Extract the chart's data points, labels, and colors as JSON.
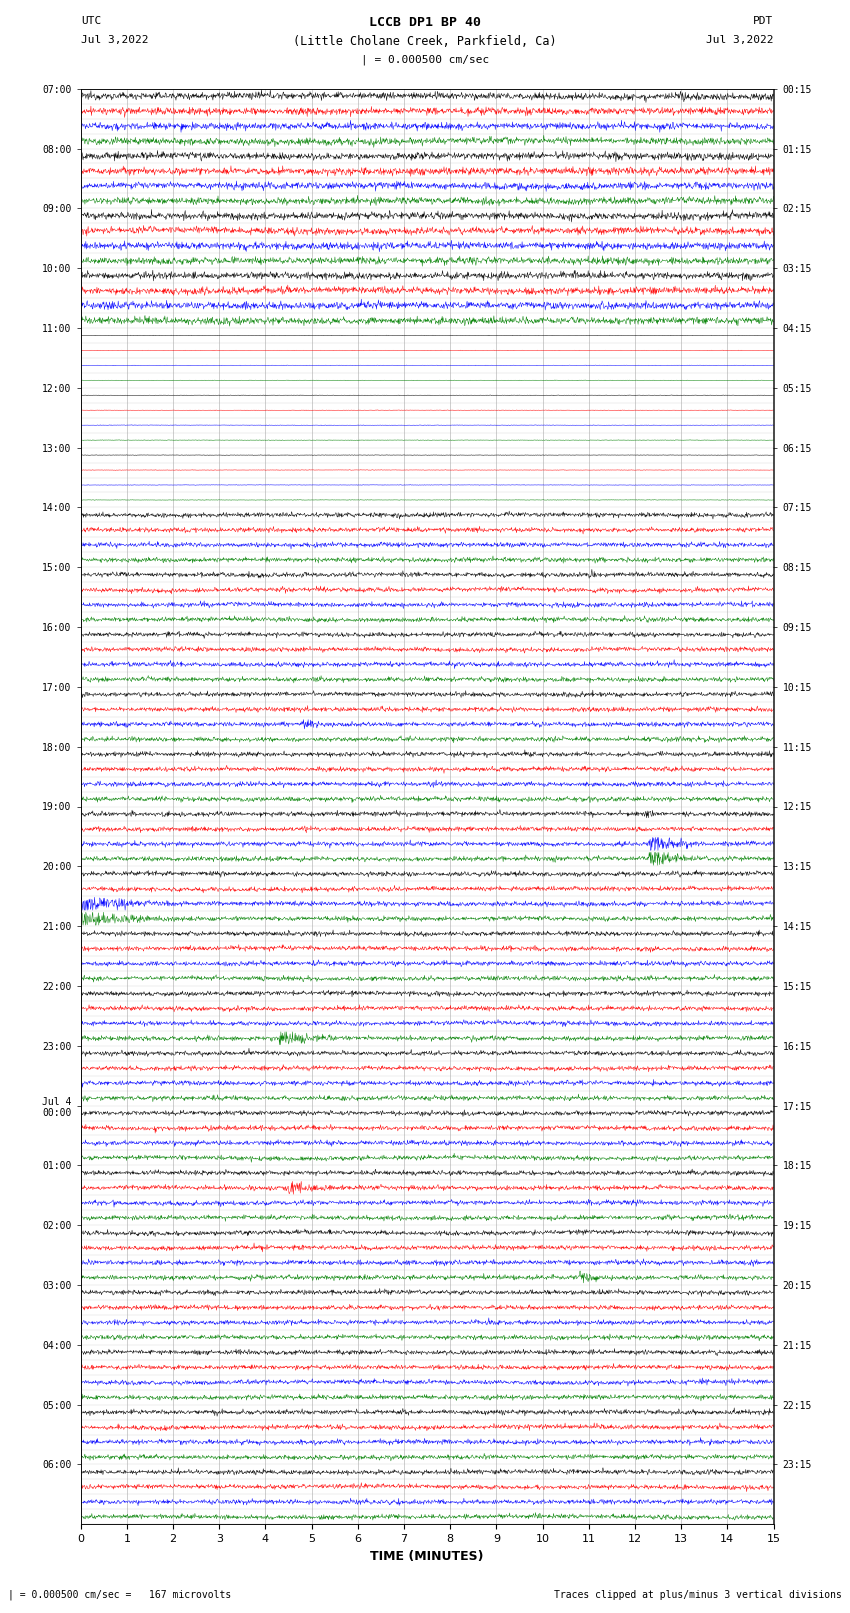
{
  "title_line1": "LCCB DP1 BP 40",
  "title_line2": "(Little Cholane Creek, Parkfield, Ca)",
  "scale_text": "| = 0.000500 cm/sec",
  "utc_label": "UTC",
  "utc_date": "Jul 3,2022",
  "pdt_label": "PDT",
  "pdt_date": "Jul 3,2022",
  "xlabel": "TIME (MINUTES)",
  "footer_left": "| = 0.000500 cm/sec =   167 microvolts",
  "footer_right": "Traces clipped at plus/minus 3 vertical divisions",
  "trace_colors": [
    "black",
    "red",
    "blue",
    "green"
  ],
  "figure_width": 8.5,
  "figure_height": 16.13,
  "dpi": 100,
  "left_time_labels": [
    "07:00",
    "08:00",
    "09:00",
    "10:00",
    "11:00",
    "12:00",
    "13:00",
    "14:00",
    "15:00",
    "16:00",
    "17:00",
    "18:00",
    "19:00",
    "20:00",
    "21:00",
    "22:00",
    "23:00",
    "Jul 4\n00:00",
    "01:00",
    "02:00",
    "03:00",
    "04:00",
    "05:00",
    "06:00"
  ],
  "right_time_labels": [
    "00:15",
    "01:15",
    "02:15",
    "03:15",
    "04:15",
    "05:15",
    "06:15",
    "07:15",
    "08:15",
    "09:15",
    "10:15",
    "11:15",
    "12:15",
    "13:15",
    "14:15",
    "15:15",
    "16:15",
    "17:15",
    "18:15",
    "19:15",
    "20:15",
    "21:15",
    "22:15",
    "23:15"
  ],
  "n_hours": 24,
  "traces_per_hour": 4,
  "active_noise_amp": 0.3,
  "quiet_noise_amp": 0.018,
  "n_points": 1500
}
